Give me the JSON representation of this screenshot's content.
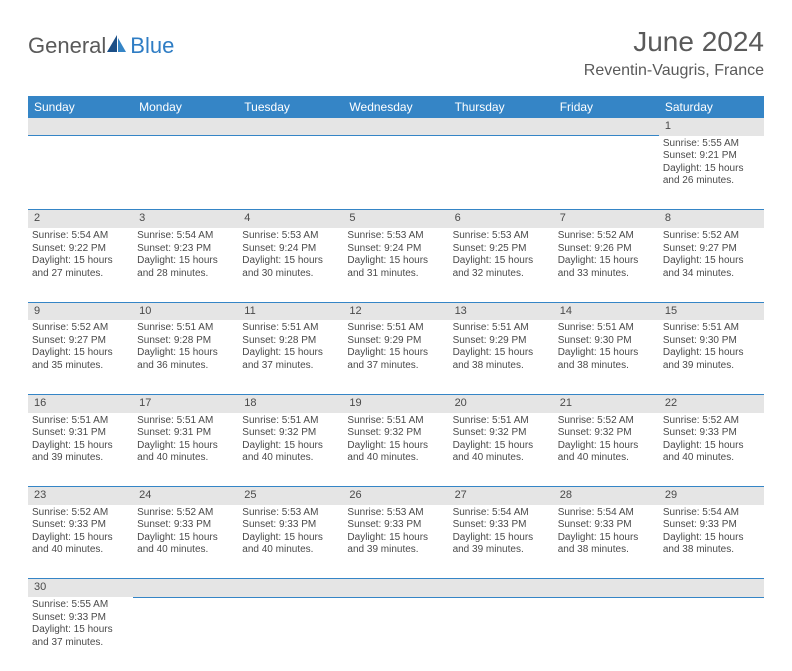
{
  "logo": {
    "general": "General",
    "blue": "Blue"
  },
  "title": "June 2024",
  "location": "Reventin-Vaugris, France",
  "colors": {
    "header_bg": "#3585c6",
    "header_text": "#ffffff",
    "daynum_bg": "#e5e5e5",
    "text": "#4a4a4a",
    "divider": "#3585c6",
    "logo_gray": "#5a5a5a",
    "logo_blue": "#2f7dc4"
  },
  "weekdays": [
    "Sunday",
    "Monday",
    "Tuesday",
    "Wednesday",
    "Thursday",
    "Friday",
    "Saturday"
  ],
  "weeks": [
    [
      null,
      null,
      null,
      null,
      null,
      null,
      {
        "n": "1",
        "sr": "Sunrise: 5:55 AM",
        "ss": "Sunset: 9:21 PM",
        "d1": "Daylight: 15 hours",
        "d2": "and 26 minutes."
      }
    ],
    [
      {
        "n": "2",
        "sr": "Sunrise: 5:54 AM",
        "ss": "Sunset: 9:22 PM",
        "d1": "Daylight: 15 hours",
        "d2": "and 27 minutes."
      },
      {
        "n": "3",
        "sr": "Sunrise: 5:54 AM",
        "ss": "Sunset: 9:23 PM",
        "d1": "Daylight: 15 hours",
        "d2": "and 28 minutes."
      },
      {
        "n": "4",
        "sr": "Sunrise: 5:53 AM",
        "ss": "Sunset: 9:24 PM",
        "d1": "Daylight: 15 hours",
        "d2": "and 30 minutes."
      },
      {
        "n": "5",
        "sr": "Sunrise: 5:53 AM",
        "ss": "Sunset: 9:24 PM",
        "d1": "Daylight: 15 hours",
        "d2": "and 31 minutes."
      },
      {
        "n": "6",
        "sr": "Sunrise: 5:53 AM",
        "ss": "Sunset: 9:25 PM",
        "d1": "Daylight: 15 hours",
        "d2": "and 32 minutes."
      },
      {
        "n": "7",
        "sr": "Sunrise: 5:52 AM",
        "ss": "Sunset: 9:26 PM",
        "d1": "Daylight: 15 hours",
        "d2": "and 33 minutes."
      },
      {
        "n": "8",
        "sr": "Sunrise: 5:52 AM",
        "ss": "Sunset: 9:27 PM",
        "d1": "Daylight: 15 hours",
        "d2": "and 34 minutes."
      }
    ],
    [
      {
        "n": "9",
        "sr": "Sunrise: 5:52 AM",
        "ss": "Sunset: 9:27 PM",
        "d1": "Daylight: 15 hours",
        "d2": "and 35 minutes."
      },
      {
        "n": "10",
        "sr": "Sunrise: 5:51 AM",
        "ss": "Sunset: 9:28 PM",
        "d1": "Daylight: 15 hours",
        "d2": "and 36 minutes."
      },
      {
        "n": "11",
        "sr": "Sunrise: 5:51 AM",
        "ss": "Sunset: 9:28 PM",
        "d1": "Daylight: 15 hours",
        "d2": "and 37 minutes."
      },
      {
        "n": "12",
        "sr": "Sunrise: 5:51 AM",
        "ss": "Sunset: 9:29 PM",
        "d1": "Daylight: 15 hours",
        "d2": "and 37 minutes."
      },
      {
        "n": "13",
        "sr": "Sunrise: 5:51 AM",
        "ss": "Sunset: 9:29 PM",
        "d1": "Daylight: 15 hours",
        "d2": "and 38 minutes."
      },
      {
        "n": "14",
        "sr": "Sunrise: 5:51 AM",
        "ss": "Sunset: 9:30 PM",
        "d1": "Daylight: 15 hours",
        "d2": "and 38 minutes."
      },
      {
        "n": "15",
        "sr": "Sunrise: 5:51 AM",
        "ss": "Sunset: 9:30 PM",
        "d1": "Daylight: 15 hours",
        "d2": "and 39 minutes."
      }
    ],
    [
      {
        "n": "16",
        "sr": "Sunrise: 5:51 AM",
        "ss": "Sunset: 9:31 PM",
        "d1": "Daylight: 15 hours",
        "d2": "and 39 minutes."
      },
      {
        "n": "17",
        "sr": "Sunrise: 5:51 AM",
        "ss": "Sunset: 9:31 PM",
        "d1": "Daylight: 15 hours",
        "d2": "and 40 minutes."
      },
      {
        "n": "18",
        "sr": "Sunrise: 5:51 AM",
        "ss": "Sunset: 9:32 PM",
        "d1": "Daylight: 15 hours",
        "d2": "and 40 minutes."
      },
      {
        "n": "19",
        "sr": "Sunrise: 5:51 AM",
        "ss": "Sunset: 9:32 PM",
        "d1": "Daylight: 15 hours",
        "d2": "and 40 minutes."
      },
      {
        "n": "20",
        "sr": "Sunrise: 5:51 AM",
        "ss": "Sunset: 9:32 PM",
        "d1": "Daylight: 15 hours",
        "d2": "and 40 minutes."
      },
      {
        "n": "21",
        "sr": "Sunrise: 5:52 AM",
        "ss": "Sunset: 9:32 PM",
        "d1": "Daylight: 15 hours",
        "d2": "and 40 minutes."
      },
      {
        "n": "22",
        "sr": "Sunrise: 5:52 AM",
        "ss": "Sunset: 9:33 PM",
        "d1": "Daylight: 15 hours",
        "d2": "and 40 minutes."
      }
    ],
    [
      {
        "n": "23",
        "sr": "Sunrise: 5:52 AM",
        "ss": "Sunset: 9:33 PM",
        "d1": "Daylight: 15 hours",
        "d2": "and 40 minutes."
      },
      {
        "n": "24",
        "sr": "Sunrise: 5:52 AM",
        "ss": "Sunset: 9:33 PM",
        "d1": "Daylight: 15 hours",
        "d2": "and 40 minutes."
      },
      {
        "n": "25",
        "sr": "Sunrise: 5:53 AM",
        "ss": "Sunset: 9:33 PM",
        "d1": "Daylight: 15 hours",
        "d2": "and 40 minutes."
      },
      {
        "n": "26",
        "sr": "Sunrise: 5:53 AM",
        "ss": "Sunset: 9:33 PM",
        "d1": "Daylight: 15 hours",
        "d2": "and 39 minutes."
      },
      {
        "n": "27",
        "sr": "Sunrise: 5:54 AM",
        "ss": "Sunset: 9:33 PM",
        "d1": "Daylight: 15 hours",
        "d2": "and 39 minutes."
      },
      {
        "n": "28",
        "sr": "Sunrise: 5:54 AM",
        "ss": "Sunset: 9:33 PM",
        "d1": "Daylight: 15 hours",
        "d2": "and 38 minutes."
      },
      {
        "n": "29",
        "sr": "Sunrise: 5:54 AM",
        "ss": "Sunset: 9:33 PM",
        "d1": "Daylight: 15 hours",
        "d2": "and 38 minutes."
      }
    ],
    [
      {
        "n": "30",
        "sr": "Sunrise: 5:55 AM",
        "ss": "Sunset: 9:33 PM",
        "d1": "Daylight: 15 hours",
        "d2": "and 37 minutes."
      },
      null,
      null,
      null,
      null,
      null,
      null
    ]
  ]
}
